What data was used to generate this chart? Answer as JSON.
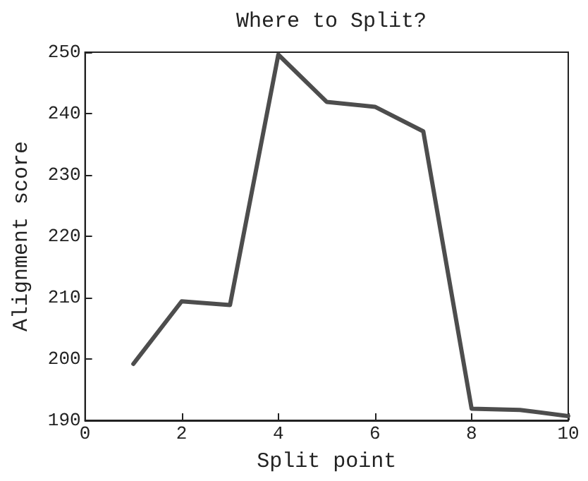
{
  "chart_data": {
    "type": "line",
    "title": "Where to Split?",
    "xlabel": "Split point",
    "ylabel": "Alignment score",
    "x": [
      1,
      2,
      3,
      4,
      5,
      6,
      7,
      8,
      9,
      10
    ],
    "series": [
      {
        "color": "#4d4d4d",
        "values": [
          199.2,
          209.4,
          208.8,
          249.6,
          241.9,
          241.1,
          237.1,
          191.9,
          191.7,
          190.7
        ]
      }
    ],
    "xlim": [
      0,
      10
    ],
    "xticks": [
      0,
      2,
      4,
      6,
      8,
      10
    ],
    "ylim": [
      190,
      250
    ],
    "yticks": [
      190,
      200,
      210,
      220,
      230,
      240,
      250
    ],
    "marker": "none",
    "line_style": "solid"
  }
}
